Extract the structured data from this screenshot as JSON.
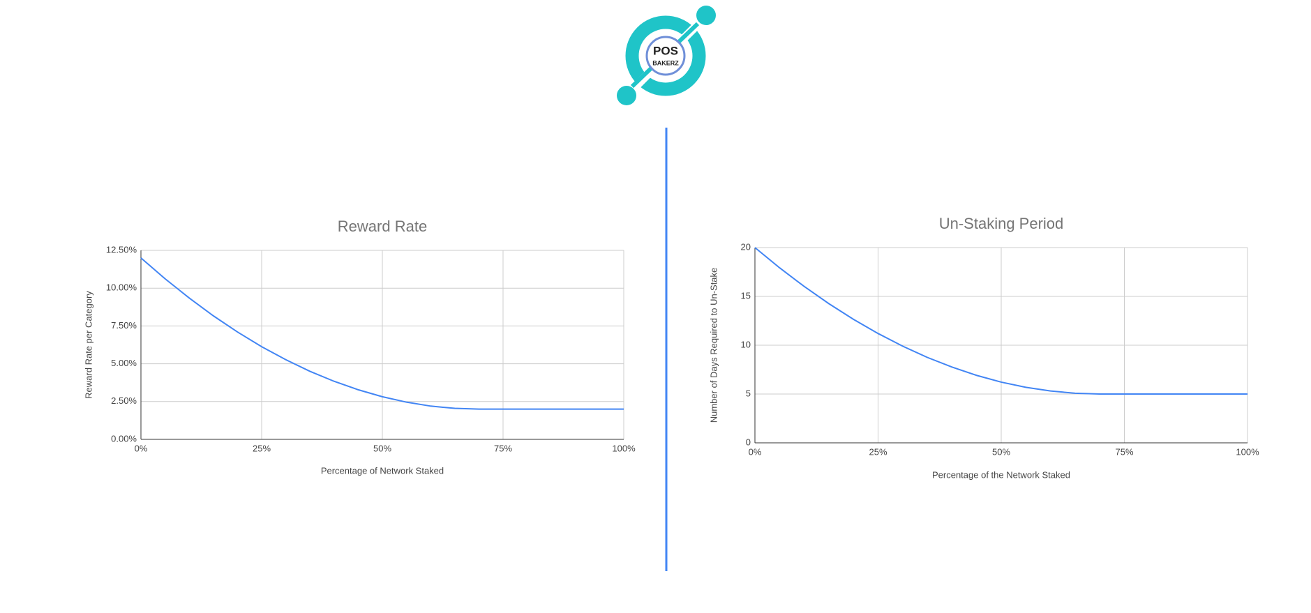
{
  "logo": {
    "line1": "POS",
    "line2": "BAKERZ"
  },
  "chart_data": [
    {
      "type": "line",
      "title": "Reward Rate",
      "x_label": "Percentage of Network Staked",
      "y_label": "Reward Rate per Category",
      "x": [
        0,
        5,
        10,
        15,
        20,
        25,
        30,
        35,
        40,
        45,
        50,
        55,
        60,
        65,
        70,
        75,
        80,
        85,
        90,
        95,
        100
      ],
      "series": [
        {
          "name": "Reward Rate",
          "color": "#4285f4",
          "values": [
            12,
            10.62,
            9.35,
            8.17,
            7.1,
            6.13,
            5.27,
            4.5,
            3.84,
            3.28,
            2.82,
            2.46,
            2.2,
            2.05,
            2,
            2,
            2,
            2,
            2,
            2,
            2
          ]
        }
      ],
      "xlim": [
        0,
        100
      ],
      "xticks": [
        {
          "value": 0,
          "label": "0%"
        },
        {
          "value": 25,
          "label": "25%"
        },
        {
          "value": 50,
          "label": "50%"
        },
        {
          "value": 75,
          "label": "75%"
        },
        {
          "value": 100,
          "label": "100%"
        }
      ],
      "ylim": [
        0,
        12.5
      ],
      "yticks": [
        {
          "value": 0,
          "label": "0.00%"
        },
        {
          "value": 2.5,
          "label": "2.50%"
        },
        {
          "value": 5,
          "label": "5.00%"
        },
        {
          "value": 7.5,
          "label": "7.50%"
        },
        {
          "value": 10,
          "label": "10.00%"
        },
        {
          "value": 12.5,
          "label": "12.50%"
        }
      ],
      "grid": true
    },
    {
      "type": "line",
      "title": "Un-Staking Period",
      "x_label": "Percentage of the Network Staked",
      "y_label": "Number of Days Required to Un-Stake",
      "x": [
        0,
        5,
        10,
        15,
        20,
        25,
        30,
        35,
        40,
        45,
        50,
        55,
        60,
        65,
        70,
        75,
        80,
        85,
        90,
        95,
        100
      ],
      "series": [
        {
          "name": "Un-Staking Period",
          "color": "#4285f4",
          "values": [
            20,
            17.93,
            16.02,
            14.26,
            12.65,
            11.2,
            9.9,
            8.75,
            7.76,
            6.91,
            6.22,
            5.69,
            5.31,
            5.08,
            5,
            5,
            5,
            5,
            5,
            5,
            5
          ]
        }
      ],
      "xlim": [
        0,
        100
      ],
      "xticks": [
        {
          "value": 0,
          "label": "0%"
        },
        {
          "value": 25,
          "label": "25%"
        },
        {
          "value": 50,
          "label": "50%"
        },
        {
          "value": 75,
          "label": "75%"
        },
        {
          "value": 100,
          "label": "100%"
        }
      ],
      "ylim": [
        0,
        20
      ],
      "yticks": [
        0,
        5,
        10,
        15,
        20
      ],
      "grid": true
    }
  ]
}
